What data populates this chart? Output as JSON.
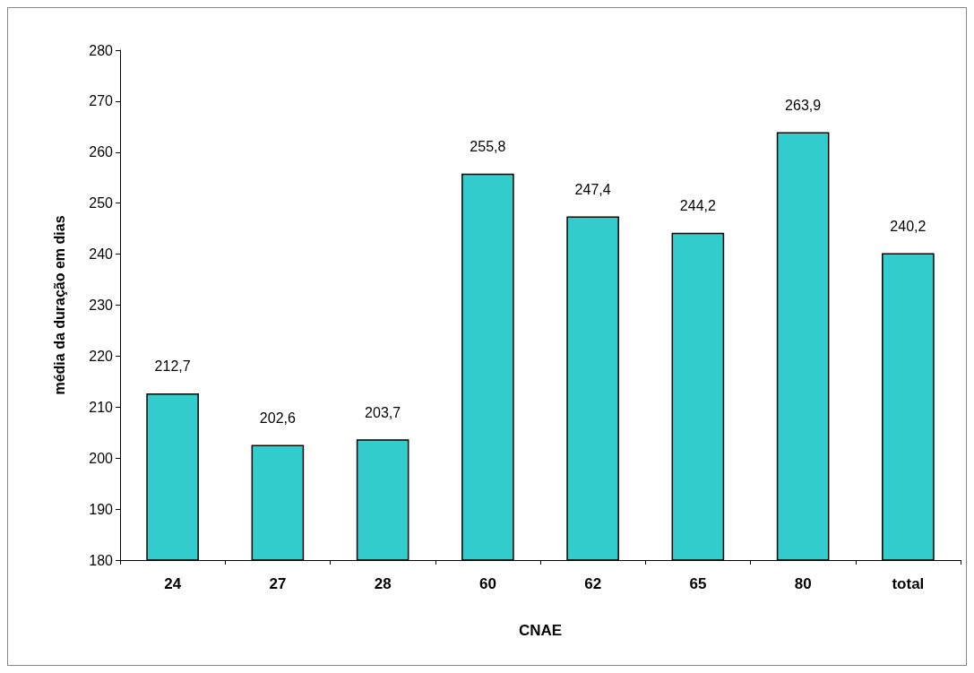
{
  "chart_data": {
    "type": "bar",
    "xlabel": "CNAE",
    "ylabel": "média da duração em dias",
    "categories": [
      "24",
      "27",
      "28",
      "60",
      "62",
      "65",
      "80",
      "total"
    ],
    "values": [
      212.7,
      202.6,
      203.7,
      255.8,
      247.4,
      244.2,
      263.9,
      240.2
    ],
    "value_labels": [
      "212,7",
      "202,6",
      "203,7",
      "255,8",
      "247,4",
      "244,2",
      "263,9",
      "240,2"
    ],
    "color": "#33cccc",
    "yticks": [
      180,
      190,
      200,
      210,
      220,
      230,
      240,
      250,
      260,
      270,
      280
    ],
    "ylim": [
      180,
      280
    ]
  }
}
